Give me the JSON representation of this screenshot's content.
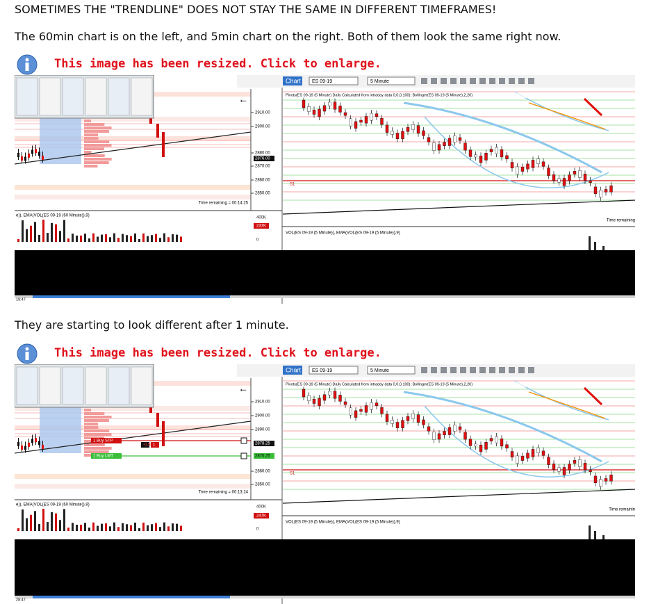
{
  "post": {
    "heading": "SOMETIMES THE \"TRENDLINE\" DOES NOT STAY THE SAME IN DIFFERENT TIMEFRAMES!",
    "paragraph_1": "The 60min chart is on the left, and 5min chart on the right. Both of them look the same right now.",
    "paragraph_2": "They are starting to look different after 1 minute."
  },
  "images": [
    {
      "notice": "This image has been resized.  Click to enlarge.",
      "left": {
        "price_labels": [
          "2910.00",
          "2900.00",
          "2880.00",
          "2870.00",
          "2860.00",
          "2850.00"
        ],
        "current_price": "2876.00",
        "time_remaining": "Time remaining = 00:14:25",
        "volume_label": "e)), EMA(VOL(ES 09-19 (60 Minute)),9)",
        "volume_ticks": [
          "400K",
          "237K",
          "0"
        ]
      },
      "right": {
        "tab": "Chart",
        "instrument": "ES 09-19",
        "interval": "5 Minute",
        "indicator_label": "Pivots(ES 09-19 (5 Minute) Daily Calculated from intraday data 0,0,0,100); Bollinger(ES 09-19 (5 Minute),2,20)",
        "pivot": "S1",
        "time_remaining": "Time remaining",
        "volume_label": "VOL(ES 09-19 (5 Minute)), EMA(VOL(ES 09-19 (5 Minute)),9)"
      },
      "timestamp": "19:47"
    },
    {
      "notice": "This image has been resized.  Click to enlarge.",
      "left": {
        "price_labels": [
          "2910.00",
          "2900.00",
          "2890.00",
          "2860.00",
          "2850.00"
        ],
        "current_price": "2878.25",
        "limit_price": "2870.25",
        "orders": [
          "1  Buy STP",
          "-0.50",
          "1",
          "1  Buy LMT"
        ],
        "time_remaining": "Time remaining = 00:13:24",
        "volume_label": "e)), EMA(VOL(ES 09-19 (60 Minute)),9)",
        "volume_ticks": [
          "400K",
          "247K",
          "0"
        ]
      },
      "right": {
        "tab": "Chart",
        "instrument": "ES 09-19",
        "interval": "5 Minute",
        "indicator_label": "Pivots(ES 09-19 (5 Minute) Daily Calculated from intraday data 0,0,0,100); Bollinger(ES 09-19 (5 Minute),2,20)",
        "pivot": "S1",
        "time_remaining": "Time remainin",
        "volume_label": "VOL(ES 09-19 (5 Minute)), EMA(VOL(ES 09-19 (5 Minute)),9)"
      },
      "timestamp": "28:47"
    }
  ]
}
